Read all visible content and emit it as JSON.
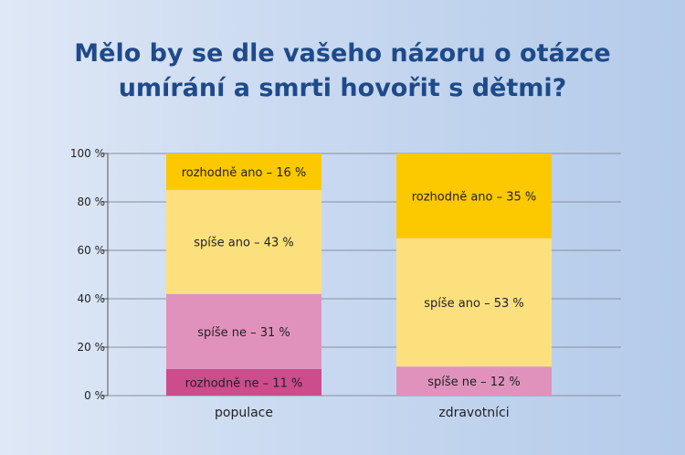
{
  "title_line1": "Mělo by se dle vašeho názoru o otázce",
  "title_line2": "umírání a smrti hovořit s dětmi?",
  "chart_data": {
    "type": "bar",
    "stacked": true,
    "categories": [
      "populace",
      "zdravotníci"
    ],
    "series": [
      {
        "name": "rozhodně ne",
        "values": [
          11,
          0
        ],
        "labels": [
          "rozhodně ne – 11 %",
          ""
        ],
        "color": "#cc4c8c"
      },
      {
        "name": "spíše ne",
        "values": [
          31,
          12
        ],
        "labels": [
          "spíše ne – 31 %",
          "spíše ne – 12 %"
        ],
        "color": "#e092bc"
      },
      {
        "name": "spíše ano",
        "values": [
          43,
          53
        ],
        "labels": [
          "spíše ano – 43 %",
          "spíše ano – 53 %"
        ],
        "color": "#fde07e"
      },
      {
        "name": "rozhodně ano",
        "values": [
          16,
          35
        ],
        "labels": [
          "rozhodně ano – 16 %",
          "rozhodně ano – 35 %"
        ],
        "color": "#fcc800"
      }
    ],
    "ylim": [
      0,
      100
    ],
    "yticks": [
      0,
      20,
      40,
      60,
      80,
      100
    ],
    "ytick_labels": [
      "0 %",
      "20 %",
      "40 %",
      "60 %",
      "80 %",
      "100 %"
    ],
    "grid": true,
    "xlabel": "",
    "ylabel": ""
  }
}
